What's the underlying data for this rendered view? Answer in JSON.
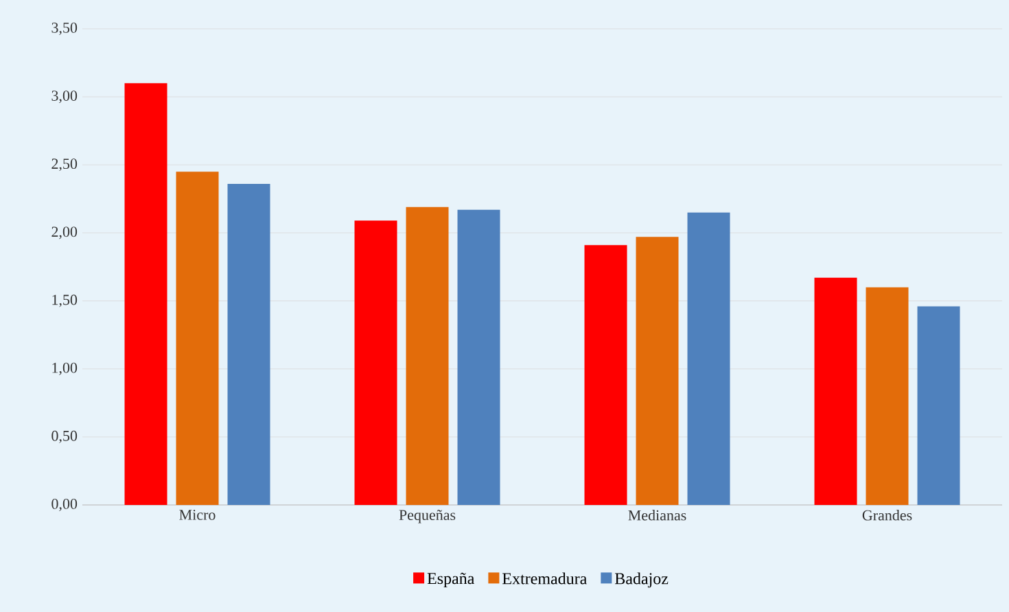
{
  "chart_data": {
    "type": "bar",
    "categories": [
      "Micro",
      "Pequeñas",
      "Medianas",
      "Grandes"
    ],
    "series": [
      {
        "name": "España",
        "color": "#ff0000",
        "values": [
          3.1,
          2.09,
          1.91,
          1.67
        ]
      },
      {
        "name": "Extremadura",
        "color": "#e36c0a",
        "values": [
          2.45,
          2.19,
          1.97,
          1.6
        ]
      },
      {
        "name": "Badajoz",
        "color": "#4f81bd",
        "values": [
          2.36,
          2.17,
          2.15,
          1.46
        ]
      }
    ],
    "ylim": [
      0,
      3.5
    ],
    "yticks": [
      {
        "value": 0,
        "label": "0,00"
      },
      {
        "value": 0.5,
        "label": "0,50"
      },
      {
        "value": 1,
        "label": "1,00"
      },
      {
        "value": 1.5,
        "label": "1,50"
      },
      {
        "value": 2,
        "label": "2,00"
      },
      {
        "value": 2.5,
        "label": "2,50"
      },
      {
        "value": 3,
        "label": "3,00"
      },
      {
        "value": 3.5,
        "label": "3,50"
      }
    ],
    "grid": "y",
    "legend": "bottom"
  }
}
